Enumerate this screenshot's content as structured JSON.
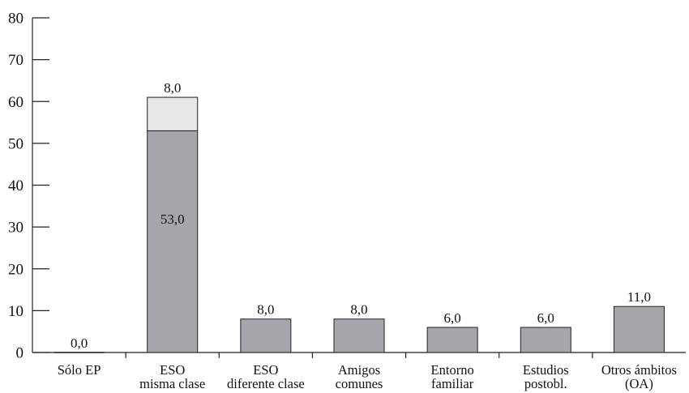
{
  "chart_data": {
    "type": "bar",
    "stacked": true,
    "title": "",
    "xlabel": "",
    "ylabel": "",
    "ylim": [
      0,
      80
    ],
    "yticks": [
      0,
      10,
      20,
      30,
      40,
      50,
      60,
      70,
      80
    ],
    "grid": false,
    "categories": [
      [
        "Sólo EP"
      ],
      [
        "ESO",
        "misma clase"
      ],
      [
        "ESO",
        "diferente clase"
      ],
      [
        "Amigos",
        "comunes"
      ],
      [
        "Entorno",
        "familiar"
      ],
      [
        "Estudios",
        "postobl."
      ],
      [
        "Otros ámbitos",
        "(OA)"
      ]
    ],
    "series": [
      {
        "color": "#a5a6ab",
        "values": [
          0,
          53,
          8,
          8,
          6,
          6,
          11
        ],
        "labels": [
          "0,0",
          "53,0",
          "8,0",
          "8,0",
          "6,0",
          "6,0",
          "11,0"
        ]
      },
      {
        "color": "#e6e7e9",
        "values": [
          0,
          8,
          0,
          0,
          0,
          0,
          0
        ],
        "labels": [
          "",
          "8,0",
          "",
          "",
          "",
          "",
          ""
        ]
      }
    ]
  }
}
